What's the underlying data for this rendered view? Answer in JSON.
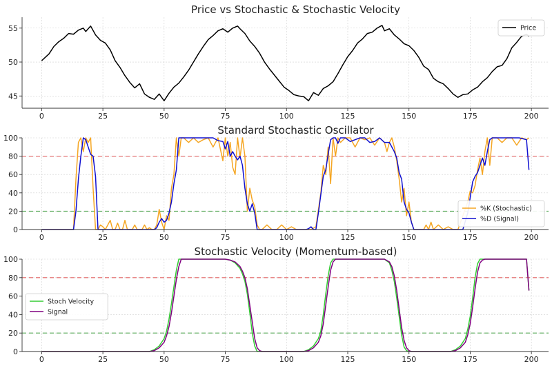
{
  "chart_data": [
    {
      "type": "line",
      "title": "Price vs Stochastic & Stochastic Velocity",
      "xlabel": "",
      "ylabel": "",
      "xlim": [
        -8,
        207
      ],
      "ylim": [
        43.2,
        56.6
      ],
      "xticks": [
        0,
        25,
        50,
        75,
        100,
        125,
        150,
        175,
        200
      ],
      "yticks": [
        45,
        50,
        55
      ],
      "grid": true,
      "legend": "upper-right",
      "series": [
        {
          "name": "Price",
          "color": "#000000",
          "x": [
            0,
            3,
            5,
            7,
            9,
            11,
            13,
            15,
            17,
            18,
            20,
            22,
            24,
            26,
            28,
            30,
            32,
            34,
            36,
            38,
            40,
            42,
            44,
            46,
            48,
            50,
            52,
            54,
            56,
            58,
            60,
            62,
            64,
            66,
            68,
            70,
            72,
            74,
            76,
            78,
            80,
            81,
            83,
            85,
            87,
            89,
            91,
            93,
            95,
            97,
            99,
            101,
            103,
            105,
            107,
            109,
            111,
            113,
            115,
            117,
            119,
            121,
            123,
            125,
            127,
            129,
            131,
            133,
            135,
            137,
            139,
            140,
            142,
            144,
            146,
            148,
            150,
            152,
            154,
            156,
            158,
            160,
            162,
            164,
            166,
            168,
            170,
            172,
            174,
            176,
            178,
            180,
            182,
            184,
            186,
            188,
            190,
            192,
            194,
            196,
            198,
            199
          ],
          "values": [
            50.2,
            51.2,
            52.3,
            53.0,
            53.5,
            54.2,
            54.1,
            54.7,
            55.0,
            54.5,
            55.3,
            54.0,
            53.2,
            52.8,
            51.8,
            50.2,
            49.2,
            48.0,
            47.0,
            46.2,
            46.8,
            45.3,
            44.8,
            44.5,
            45.3,
            44.3,
            45.4,
            46.3,
            46.9,
            47.8,
            48.8,
            50.0,
            51.2,
            52.3,
            53.3,
            53.9,
            54.6,
            54.9,
            54.4,
            55.0,
            55.3,
            54.9,
            54.2,
            53.1,
            52.3,
            51.3,
            50.0,
            49.0,
            48.1,
            47.2,
            46.3,
            45.8,
            45.2,
            45.0,
            44.9,
            44.3,
            45.5,
            45.1,
            46.1,
            46.5,
            47.1,
            48.3,
            49.6,
            50.8,
            51.7,
            52.8,
            53.4,
            54.2,
            54.4,
            55.0,
            55.4,
            54.6,
            54.9,
            54.0,
            53.4,
            52.7,
            52.4,
            51.7,
            50.7,
            49.4,
            48.9,
            47.6,
            47.1,
            46.8,
            46.1,
            45.3,
            44.8,
            45.2,
            45.3,
            45.9,
            46.3,
            47.1,
            47.7,
            48.6,
            49.3,
            49.5,
            50.5,
            52.1,
            52.9,
            53.8,
            54.1,
            53.8
          ]
        }
      ]
    },
    {
      "type": "line",
      "title": "Standard Stochastic Oscillator",
      "xlabel": "",
      "ylabel": "",
      "xlim": [
        -8,
        207
      ],
      "ylim": [
        0,
        100
      ],
      "xticks": [
        0,
        25,
        50,
        75,
        100,
        125,
        150,
        175,
        200
      ],
      "yticks": [
        0,
        20,
        40,
        60,
        80,
        100
      ],
      "grid": true,
      "legend": "lower-right",
      "hlines": [
        {
          "y": 80,
          "color": "#e06060"
        },
        {
          "y": 20,
          "color": "#5aaa5a"
        }
      ],
      "series": [
        {
          "name": "%K (Stochastic)",
          "color": "#f5a623",
          "x": [
            0,
            13,
            14,
            15,
            16,
            17,
            18,
            19,
            20,
            21,
            22,
            23,
            24,
            25,
            26,
            28,
            29,
            30,
            31,
            32,
            33,
            34,
            35,
            36,
            37,
            38,
            39,
            40,
            41,
            42,
            43,
            44,
            45,
            46,
            47,
            48,
            49,
            50,
            51,
            52,
            53,
            54,
            55,
            56,
            57,
            58,
            60,
            62,
            64,
            66,
            68,
            70,
            72,
            74,
            75,
            76,
            77,
            78,
            79,
            80,
            81,
            82,
            83,
            84,
            85,
            86,
            87,
            88,
            89,
            90,
            92,
            94,
            96,
            98,
            100,
            102,
            104,
            106,
            108,
            110,
            112,
            114,
            115,
            116,
            117,
            118,
            119,
            120,
            121,
            122,
            124,
            126,
            128,
            130,
            132,
            134,
            136,
            138,
            140,
            141,
            142,
            143,
            144,
            145,
            146,
            147,
            148,
            149,
            150,
            151,
            152,
            153,
            154,
            155,
            156,
            157,
            158,
            159,
            160,
            162,
            164,
            166,
            168,
            170,
            172,
            174,
            175,
            176,
            177,
            178,
            179,
            180,
            181,
            182,
            183,
            184,
            186,
            188,
            190,
            192,
            194,
            196,
            198,
            199
          ],
          "values": [
            0,
            0,
            55,
            95,
            100,
            85,
            100,
            95,
            100,
            45,
            0,
            0,
            5,
            3,
            0,
            10,
            0,
            0,
            7,
            0,
            0,
            10,
            0,
            0,
            0,
            5,
            0,
            0,
            0,
            5,
            0,
            2,
            0,
            0,
            5,
            22,
            8,
            0,
            15,
            10,
            45,
            60,
            100,
            80,
            100,
            100,
            95,
            100,
            95,
            98,
            100,
            90,
            100,
            75,
            100,
            80,
            95,
            68,
            60,
            100,
            78,
            100,
            80,
            20,
            45,
            32,
            25,
            5,
            0,
            0,
            5,
            0,
            0,
            5,
            0,
            3,
            0,
            0,
            0,
            0,
            3,
            40,
            70,
            60,
            90,
            50,
            100,
            80,
            100,
            95,
            100,
            100,
            90,
            100,
            98,
            100,
            92,
            100,
            95,
            85,
            95,
            100,
            90,
            75,
            55,
            30,
            45,
            15,
            30,
            8,
            0,
            0,
            0,
            0,
            0,
            5,
            0,
            8,
            0,
            5,
            0,
            3,
            0,
            0,
            15,
            30,
            42,
            40,
            48,
            65,
            78,
            60,
            85,
            100,
            70,
            100,
            100,
            95,
            100,
            100,
            92,
            100,
            98,
            100
          ]
        },
        {
          "name": "%D (Signal)",
          "color": "#1010d0",
          "x": [
            0,
            13,
            14,
            15,
            16,
            17,
            18,
            19,
            20,
            21,
            22,
            23,
            25,
            30,
            35,
            40,
            44,
            45,
            46,
            47,
            48,
            49,
            50,
            51,
            52,
            53,
            54,
            55,
            56,
            60,
            70,
            72,
            74,
            75,
            76,
            77,
            78,
            79,
            80,
            81,
            82,
            83,
            84,
            85,
            86,
            87,
            88,
            89,
            90,
            95,
            100,
            105,
            108,
            109,
            110,
            111,
            112,
            113,
            114,
            115,
            116,
            117,
            118,
            119,
            120,
            121,
            122,
            124,
            126,
            128,
            130,
            132,
            134,
            136,
            138,
            140,
            142,
            144,
            145,
            146,
            147,
            148,
            149,
            150,
            151,
            152,
            155,
            160,
            170,
            172,
            174,
            175,
            176,
            177,
            178,
            179,
            180,
            181,
            182,
            183,
            184,
            186,
            190,
            195,
            198,
            199
          ],
          "values": [
            0,
            0,
            20,
            55,
            80,
            100,
            98,
            90,
            82,
            80,
            58,
            0,
            0,
            0,
            0,
            0,
            0,
            0,
            0,
            2,
            8,
            12,
            8,
            10,
            18,
            30,
            50,
            65,
            100,
            100,
            100,
            97,
            96,
            88,
            96,
            80,
            85,
            80,
            76,
            80,
            70,
            45,
            28,
            20,
            28,
            18,
            0,
            0,
            0,
            0,
            0,
            0,
            0,
            1,
            3,
            0,
            0,
            18,
            38,
            58,
            65,
            82,
            98,
            100,
            100,
            94,
            100,
            100,
            96,
            98,
            100,
            100,
            95,
            96,
            100,
            95,
            95,
            85,
            78,
            62,
            55,
            30,
            22,
            18,
            8,
            0,
            0,
            0,
            0,
            0,
            18,
            35,
            52,
            58,
            62,
            70,
            78,
            70,
            85,
            98,
            100,
            100,
            100,
            100,
            98,
            65
          ]
        }
      ]
    },
    {
      "type": "line",
      "title": "Stochastic Velocity (Momentum-based)",
      "xlabel": "",
      "ylabel": "",
      "xlim": [
        -8,
        207
      ],
      "ylim": [
        0,
        100
      ],
      "xticks": [
        0,
        25,
        50,
        75,
        100,
        125,
        150,
        175,
        200
      ],
      "yticks": [
        0,
        20,
        40,
        60,
        80,
        100
      ],
      "grid": true,
      "legend": "upper-left",
      "hlines": [
        {
          "y": 80,
          "color": "#e06060"
        },
        {
          "y": 20,
          "color": "#5aaa5a"
        }
      ],
      "series": [
        {
          "name": "Stoch Velocity",
          "color": "#33cc33",
          "x": [
            0,
            44,
            46,
            48,
            50,
            51,
            52,
            53,
            54,
            55,
            56,
            60,
            70,
            75,
            77,
            79,
            81,
            82,
            83,
            84,
            85,
            86,
            87,
            88,
            90,
            100,
            107,
            109,
            111,
            113,
            114,
            115,
            116,
            117,
            118,
            119,
            120,
            122,
            130,
            138,
            140,
            142,
            143,
            144,
            145,
            146,
            147,
            148,
            149,
            150,
            152,
            160,
            167,
            169,
            171,
            173,
            174,
            175,
            176,
            177,
            178,
            179,
            180,
            182,
            190,
            198,
            199
          ],
          "values": [
            0,
            0,
            2,
            6,
            14,
            22,
            35,
            52,
            70,
            88,
            100,
            100,
            100,
            100,
            99,
            96,
            90,
            84,
            76,
            62,
            42,
            20,
            6,
            0,
            0,
            0,
            0,
            2,
            6,
            14,
            22,
            40,
            62,
            82,
            96,
            100,
            100,
            100,
            100,
            100,
            100,
            96,
            88,
            76,
            58,
            38,
            18,
            5,
            1,
            0,
            0,
            0,
            0,
            2,
            6,
            14,
            24,
            38,
            58,
            80,
            95,
            100,
            100,
            100,
            100,
            100,
            66
          ]
        },
        {
          "name": "Signal",
          "color": "#800080",
          "x": [
            0,
            44,
            46,
            48,
            50,
            51,
            52,
            53,
            54,
            55,
            56,
            57,
            60,
            70,
            75,
            77,
            79,
            81,
            82,
            83,
            84,
            85,
            86,
            87,
            88,
            89,
            90,
            100,
            107,
            109,
            111,
            113,
            114,
            115,
            116,
            117,
            118,
            119,
            120,
            121,
            122,
            130,
            138,
            140,
            142,
            143,
            144,
            145,
            146,
            147,
            148,
            149,
            150,
            151,
            152,
            160,
            167,
            169,
            171,
            173,
            174,
            175,
            176,
            177,
            178,
            179,
            180,
            181,
            182,
            190,
            198,
            199
          ],
          "values": [
            0,
            0,
            1,
            4,
            10,
            17,
            27,
            42,
            60,
            78,
            92,
            100,
            100,
            100,
            100,
            99,
            97,
            92,
            87,
            80,
            68,
            50,
            32,
            14,
            4,
            1,
            0,
            0,
            0,
            1,
            4,
            10,
            17,
            30,
            50,
            70,
            88,
            97,
            100,
            100,
            100,
            100,
            100,
            100,
            97,
            92,
            82,
            66,
            46,
            26,
            12,
            4,
            1,
            0,
            0,
            0,
            0,
            1,
            4,
            10,
            18,
            30,
            48,
            68,
            86,
            96,
            99,
            100,
            100,
            100,
            100,
            66
          ]
        }
      ]
    }
  ]
}
